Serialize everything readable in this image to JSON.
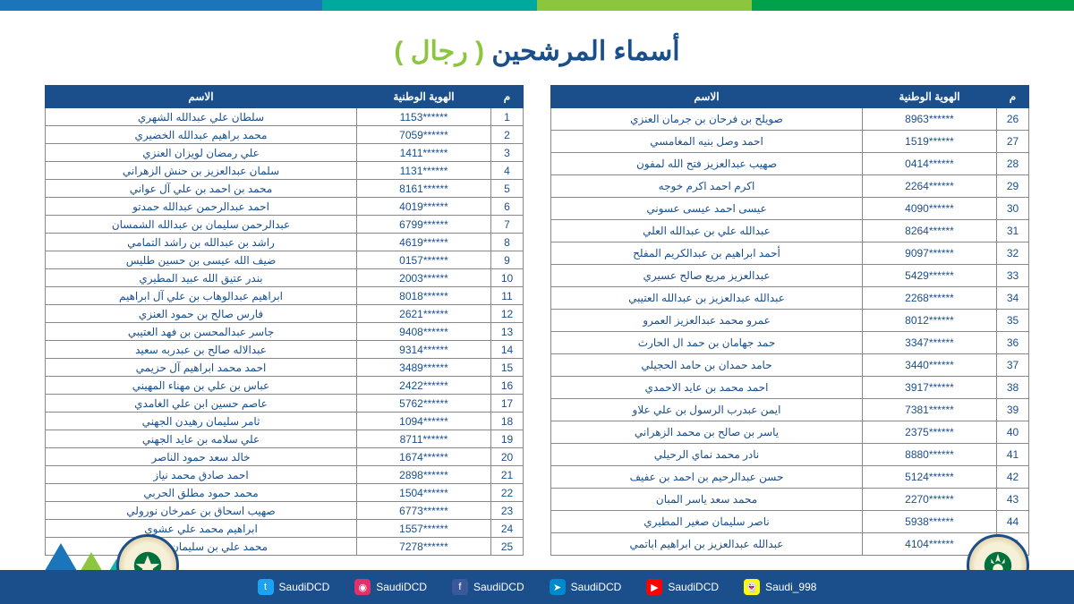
{
  "title_main": "أسماء المرشحين",
  "title_paren": "( رجال )",
  "columns": {
    "m": "م",
    "id": "الهوية الوطنية",
    "name": "الاسم"
  },
  "colors": {
    "header_bg": "#1b4f8b",
    "accent_green": "#8cc63e",
    "accent_teal": "#00a99d",
    "accent_blue": "#1b75bb",
    "accent_dgreen": "#00a14b"
  },
  "social": [
    {
      "net": "twitter",
      "handle": "SaudiDCD",
      "cls": "tw",
      "glyph": "t"
    },
    {
      "net": "instagram",
      "handle": "SaudiDCD",
      "cls": "ig",
      "glyph": "◉"
    },
    {
      "net": "facebook",
      "handle": "SaudiDCD",
      "cls": "fb",
      "glyph": "f"
    },
    {
      "net": "telegram",
      "handle": "SaudiDCD",
      "cls": "tg",
      "glyph": "➤"
    },
    {
      "net": "youtube",
      "handle": "SaudiDCD",
      "cls": "yt",
      "glyph": "▶"
    },
    {
      "net": "snapchat",
      "handle": "Saudi_998",
      "cls": "sc",
      "glyph": "👻"
    }
  ],
  "table1": [
    {
      "m": 1,
      "id": "1153******",
      "name": "سلطان علي عبدالله الشهري"
    },
    {
      "m": 2,
      "id": "7059******",
      "name": "محمد براهيم عبدالله الخضيري"
    },
    {
      "m": 3,
      "id": "1411******",
      "name": "علي رمضان لويزان العنزي"
    },
    {
      "m": 4,
      "id": "1131******",
      "name": "سلمان عبدالعزيز بن حنش الزهراني"
    },
    {
      "m": 5,
      "id": "8161******",
      "name": "محمد بن احمد بن علي آل عواني"
    },
    {
      "m": 6,
      "id": "4019******",
      "name": "احمد عبدالرحمن عبدالله حمدتو"
    },
    {
      "m": 7,
      "id": "6799******",
      "name": "عبدالرحمن سليمان بن عبدالله الشمسان"
    },
    {
      "m": 8,
      "id": "4619******",
      "name": "راشد بن عبدالله بن راشد التمامي"
    },
    {
      "m": 9,
      "id": "0157******",
      "name": "ضيف الله عيسى بن حسين طليس"
    },
    {
      "m": 10,
      "id": "2003******",
      "name": "بندر عتيق الله عبيد المطيري"
    },
    {
      "m": 11,
      "id": "8018******",
      "name": "ابراهيم عبدالوهاب بن علي آل ابراهيم"
    },
    {
      "m": 12,
      "id": "2621******",
      "name": "فارس صالح بن حمود العنزي"
    },
    {
      "m": 13,
      "id": "9408******",
      "name": "جاسر عبدالمحسن بن فهد العتيبي"
    },
    {
      "m": 14,
      "id": "9314******",
      "name": "عبدالاله صالح بن عبدربه سعيد"
    },
    {
      "m": 15,
      "id": "3489******",
      "name": "احمد محمد ابراهيم آل حزيمي"
    },
    {
      "m": 16,
      "id": "2422******",
      "name": "عباس بن علي بن مهناء المهيني"
    },
    {
      "m": 17,
      "id": "5762******",
      "name": "عاصم حسين ابن علي الغامدي"
    },
    {
      "m": 18,
      "id": "1094******",
      "name": "ثامر سليمان رهيدن الجهني"
    },
    {
      "m": 19,
      "id": "8711******",
      "name": "علي سلامه بن عايد الجهني"
    },
    {
      "m": 20,
      "id": "1674******",
      "name": "خالد سعد حمود الناصر"
    },
    {
      "m": 21,
      "id": "2898******",
      "name": "احمد صادق محمد نياز"
    },
    {
      "m": 22,
      "id": "1504******",
      "name": "محمد حمود مطلق الحربي"
    },
    {
      "m": 23,
      "id": "6773******",
      "name": "صهيب اسحاق بن عمرخان نورولي"
    },
    {
      "m": 24,
      "id": "1557******",
      "name": "ابراهيم محمد علي عشوي"
    },
    {
      "m": 25,
      "id": "7278******",
      "name": "محمد علي بن سليمان السلامه"
    }
  ],
  "table2": [
    {
      "m": 26,
      "id": "8963******",
      "name": "صويلح بن فرحان بن جرمان العنزي"
    },
    {
      "m": 27,
      "id": "1519******",
      "name": "احمد وصل بنيه المغامسي"
    },
    {
      "m": 28,
      "id": "0414******",
      "name": "صهيب عبدالعزيز فتح الله لمفون"
    },
    {
      "m": 29,
      "id": "2264******",
      "name": "اكرم احمد اكرم خوجه"
    },
    {
      "m": 30,
      "id": "4090******",
      "name": "عيسى احمد عيسى عسوني"
    },
    {
      "m": 31,
      "id": "8264******",
      "name": "عبدالله علي بن عبدالله العلي"
    },
    {
      "m": 32,
      "id": "9097******",
      "name": "أحمد ابراهيم بن عبدالكريم المفلح"
    },
    {
      "m": 33,
      "id": "5429******",
      "name": "عبدالعزيز مريع صالح عسيري"
    },
    {
      "m": 34,
      "id": "2268******",
      "name": "عبدالله عبدالعزيز بن عبدالله العتيبي"
    },
    {
      "m": 35,
      "id": "8012******",
      "name": "عمرو محمد عبدالعزيز العمرو"
    },
    {
      "m": 36,
      "id": "3347******",
      "name": "حمد جهامان بن حمد ال الحارث"
    },
    {
      "m": 37,
      "id": "3440******",
      "name": "حامد حمدان بن حامد الحجيلي"
    },
    {
      "m": 38,
      "id": "3917******",
      "name": "احمد محمد بن عايد الاحمدي"
    },
    {
      "m": 39,
      "id": "7381******",
      "name": "ايمن عبدرب الرسول بن علي علاو"
    },
    {
      "m": 40,
      "id": "2375******",
      "name": "ياسر بن صالح بن محمد الزهراني"
    },
    {
      "m": 41,
      "id": "8880******",
      "name": "نادر محمد نماي الرحيلي"
    },
    {
      "m": 42,
      "id": "5124******",
      "name": "حسن عبدالرحيم بن احمد بن عفيف"
    },
    {
      "m": 43,
      "id": "2270******",
      "name": "محمد سعد ياسر المبان"
    },
    {
      "m": 44,
      "id": "5938******",
      "name": "ناصر سليمان صغير المطيري"
    },
    {
      "m": 45,
      "id": "4104******",
      "name": "عبدالله عبدالعزيز بن ابراهيم اباتمي"
    }
  ]
}
